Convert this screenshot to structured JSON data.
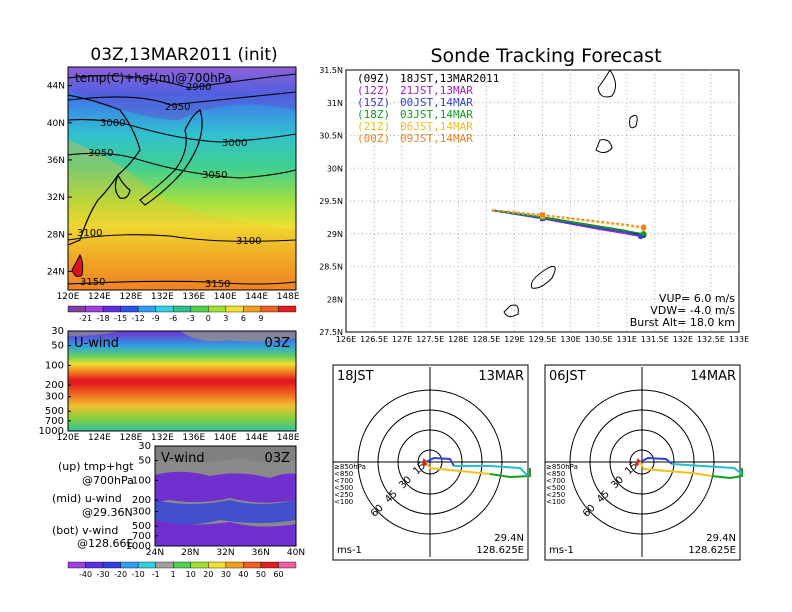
{
  "map": {
    "title": "03Z,13MAR2011 (init)",
    "field_label": "temp(C)+hgt(m)@700hPa",
    "lat_ticks": [
      "44N",
      "40N",
      "36N",
      "32N",
      "28N",
      "24N"
    ],
    "lon_ticks": [
      "120E",
      "124E",
      "128E",
      "132E",
      "136E",
      "140E",
      "144E",
      "148E"
    ],
    "contours": [
      "2900",
      "2950",
      "3000",
      "3000",
      "3050",
      "3050",
      "3100",
      "3100",
      "3150",
      "3150"
    ],
    "colorbar": [
      "-21",
      "-18",
      "-15",
      "-12",
      "-9",
      "-6",
      "-3",
      "0",
      "3",
      "6",
      "9"
    ]
  },
  "uwind": {
    "label": "U-wind",
    "time": "03Z",
    "p_ticks": [
      "30",
      "50",
      "100",
      "200",
      "300",
      "500",
      "700",
      "1000"
    ],
    "lon_ticks": [
      "120E",
      "124E",
      "128E",
      "132E",
      "136E",
      "140E",
      "144E",
      "148E"
    ]
  },
  "vwind": {
    "label": "V-wind",
    "time": "03Z",
    "p_ticks": [
      "30",
      "50",
      "100",
      "200",
      "300",
      "500",
      "700",
      "1000"
    ],
    "lat_ticks": [
      "24N",
      "28N",
      "32N",
      "36N",
      "40N"
    ],
    "colorbar": [
      "-40",
      "-30",
      "-20",
      "-10",
      "-1",
      "1",
      "10",
      "20",
      "30",
      "40",
      "50",
      "60"
    ]
  },
  "notes": {
    "line1a": "(up) tmp+hgt",
    "line1b": "@700hPa",
    "line2a": "(mid) u-wind",
    "line2b": "@29.36N",
    "line3a": "(bot) v-wind",
    "line3b": "@128.66E"
  },
  "tracking": {
    "title": "Sonde Tracking Forecast",
    "legend": [
      {
        "code": "(09Z)",
        "text": "18JST,13MAR2011",
        "color": "#000000"
      },
      {
        "code": "(12Z)",
        "text": "21JST,13MAR",
        "color": "#a020c0"
      },
      {
        "code": "(15Z)",
        "text": "00JST,14MAR",
        "color": "#3040e0"
      },
      {
        "code": "(18Z)",
        "text": "03JST,14MAR",
        "color": "#10a020"
      },
      {
        "code": "(21Z)",
        "text": "06JST,14MAR",
        "color": "#f0c020"
      },
      {
        "code": "(00Z)",
        "text": "09JST,14MAR",
        "color": "#f08020"
      }
    ],
    "lat_ticks": [
      "31.5N",
      "31N",
      "30.5N",
      "30N",
      "29.5N",
      "29N",
      "28.5N",
      "28N",
      "27.5N"
    ],
    "lon_ticks": [
      "126E",
      "126.5E",
      "127E",
      "127.5E",
      "128E",
      "128.5E",
      "129E",
      "129.5E",
      "130E",
      "130.5E",
      "131E",
      "131.5E",
      "132E",
      "132.5E",
      "133E"
    ],
    "vup": "VUP= 6.0 m/s",
    "vdw": "VDW= -4.0 m/s",
    "burst": "Burst Alt= 18.0 km"
  },
  "hodo_left": {
    "time": "18JST",
    "date": "13MAR",
    "lat": "29.4N",
    "lon": "128.625E",
    "unit": "ms-1",
    "rings": [
      "15",
      "30",
      "45",
      "60"
    ],
    "levels": [
      "≥850hPa",
      "<850",
      "<700",
      "<500",
      "<250",
      "<100"
    ]
  },
  "hodo_right": {
    "time": "06JST",
    "date": "14MAR",
    "lat": "29.4N",
    "lon": "128.625E",
    "unit": "ms-1",
    "rings": [
      "15",
      "30",
      "45",
      "60"
    ],
    "levels": [
      "≥850hPa",
      "<850",
      "<700",
      "<500",
      "<250",
      "<100"
    ]
  },
  "chart_data": [
    {
      "type": "heatmap",
      "title": "03Z,13MAR2011 (init)",
      "annotation": "temp(C)+hgt(m)@700hPa",
      "x": [
        "120E",
        "124E",
        "128E",
        "132E",
        "136E",
        "140E",
        "144E",
        "148E"
      ],
      "y": [
        "24N",
        "28N",
        "32N",
        "36N",
        "40N",
        "44N"
      ],
      "colorbar": [
        -21,
        -18,
        -15,
        -12,
        -9,
        -6,
        -3,
        0,
        3,
        6,
        9
      ]
    },
    {
      "type": "heatmap",
      "title": "U-wind",
      "annotation": "03Z",
      "x": [
        "120E",
        "124E",
        "128E",
        "132E",
        "136E",
        "140E",
        "144E",
        "148E"
      ],
      "y": [
        30,
        50,
        100,
        200,
        300,
        500,
        700,
        1000
      ]
    },
    {
      "type": "heatmap",
      "title": "V-wind",
      "annotation": "03Z",
      "x": [
        "24N",
        "28N",
        "32N",
        "36N",
        "40N"
      ],
      "y": [
        30,
        50,
        100,
        200,
        300,
        500,
        700,
        1000
      ],
      "colorbar": [
        -40,
        -30,
        -20,
        -10,
        -1,
        1,
        10,
        20,
        30,
        40,
        50,
        60
      ]
    },
    {
      "type": "line",
      "title": "Sonde Tracking Forecast",
      "xlim": [
        126,
        133
      ],
      "ylim": [
        27.5,
        31.5
      ],
      "grid": true,
      "legend_position": "top-left",
      "series": [
        {
          "name": "18JST,13MAR2011",
          "color": "#000000",
          "x": [
            128.6,
            129.0,
            129.5,
            130.0,
            130.5,
            131.0,
            131.3
          ],
          "y": [
            29.36,
            29.31,
            29.25,
            29.18,
            29.11,
            29.04,
            28.98
          ]
        },
        {
          "name": "21JST,13MAR",
          "color": "#a020c0",
          "x": [
            128.6,
            129.0,
            129.5,
            130.0,
            130.5,
            131.0,
            131.25
          ],
          "y": [
            29.36,
            29.3,
            29.23,
            29.15,
            29.07,
            29.0,
            28.96
          ]
        },
        {
          "name": "00JST,14MAR",
          "color": "#3040e0",
          "x": [
            128.6,
            129.0,
            129.5,
            130.0,
            130.5,
            131.0,
            131.25
          ],
          "y": [
            29.36,
            29.3,
            29.24,
            29.16,
            29.09,
            29.02,
            28.97
          ]
        },
        {
          "name": "03JST,14MAR",
          "color": "#10a020",
          "x": [
            128.6,
            129.0,
            129.5,
            130.0,
            130.5,
            131.0,
            131.3
          ],
          "y": [
            29.36,
            29.31,
            29.25,
            29.18,
            29.11,
            29.04,
            29.0
          ]
        },
        {
          "name": "06JST,14MAR",
          "color": "#f0c020",
          "x": [
            128.6,
            129.0,
            129.5,
            130.0,
            130.5,
            131.0,
            131.3
          ],
          "y": [
            29.36,
            29.32,
            29.27,
            29.22,
            29.17,
            29.12,
            29.08
          ]
        },
        {
          "name": "09JST,14MAR",
          "color": "#f08020",
          "x": [
            128.6,
            129.0,
            129.5,
            130.0,
            130.5,
            131.0,
            131.3
          ],
          "y": [
            29.36,
            29.33,
            29.29,
            29.24,
            29.19,
            29.14,
            29.1
          ]
        }
      ]
    }
  ]
}
